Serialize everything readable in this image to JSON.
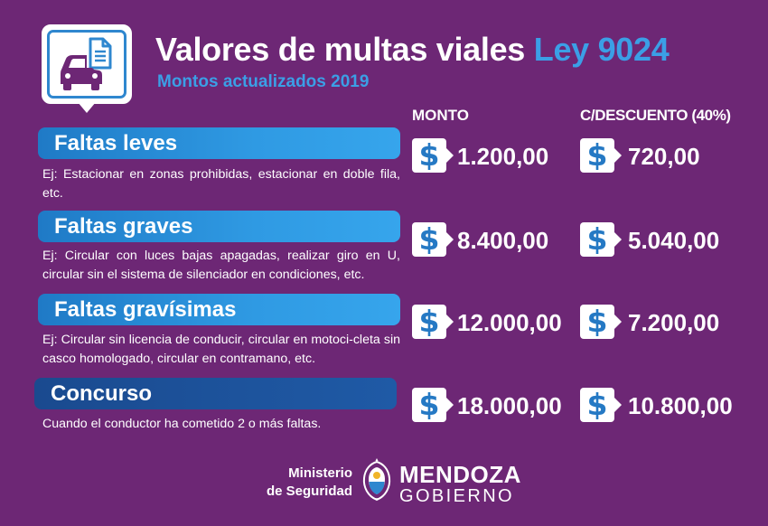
{
  "header": {
    "title": "Valores de multas viales",
    "title_highlight": "Ley 9024",
    "subtitle": "Montos actualizados 2019",
    "icon": "car-document-icon"
  },
  "columns": {
    "monto": "MONTO",
    "descuento": "C/DESCUENTO (40%)"
  },
  "currency_symbol": "$",
  "rows": [
    {
      "label": "Faltas leves",
      "description": "Ej: Estacionar en zonas prohibidas, estacionar en doble fila, etc.",
      "monto": "1.200,00",
      "descuento": "720,00"
    },
    {
      "label": "Faltas graves",
      "description": "Ej: Circular con luces bajas apagadas, realizar giro en U, circular sin el sistema de silenciador en condiciones, etc.",
      "monto": "8.400,00",
      "descuento": "5.040,00"
    },
    {
      "label": "Faltas gravísimas",
      "description": "Ej: Circular sin licencia de conducir, circular en motoci-cleta sin casco homologado, circular en contramano, etc.",
      "monto": "12.000,00",
      "descuento": "7.200,00"
    },
    {
      "label": "Concurso",
      "description": "Cuando el conductor ha cometido 2 o más faltas.",
      "monto": "18.000,00",
      "descuento": "10.800,00"
    }
  ],
  "footer": {
    "ministerio_line1": "Ministerio",
    "ministerio_line2": "de Seguridad",
    "province": "MENDOZA",
    "gobierno": "GOBIERNO",
    "seal_icon": "provincial-seal-icon"
  },
  "colors": {
    "background": "#6d2775",
    "accent_blue": "#3b9fe6",
    "pill_light": "#2f9ae3",
    "pill_dark": "#1f5aa6",
    "dollar_blue": "#2579c4"
  }
}
